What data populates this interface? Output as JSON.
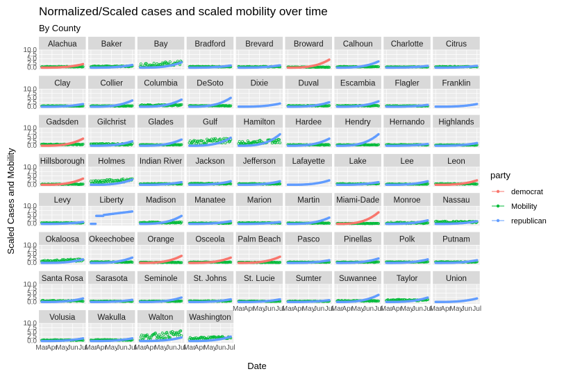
{
  "chart_data": {
    "type": "scatter",
    "title": "Normalized/Scaled cases and scaled mobility over time",
    "subtitle": "By County",
    "xlabel": "Date",
    "ylabel": "Scaled Cases and Mobility",
    "facet_by": "County",
    "x_ticks": [
      "Mar",
      "Apr",
      "May",
      "Jun",
      "Jul"
    ],
    "x_range": [
      "Mar",
      "Jul"
    ],
    "y_ticks": [
      0.0,
      2.5,
      5.0,
      7.5,
      10.0
    ],
    "y_tick_labels": [
      "0.0",
      "2.5",
      "5.0",
      "7.5",
      "10.0"
    ],
    "ylim": [
      -1,
      10
    ],
    "grid": true,
    "legend": {
      "title": "party",
      "position": "right",
      "entries": [
        {
          "name": "democrat",
          "color": "#F8766D"
        },
        {
          "name": "Mobility",
          "color": "#00BA38"
        },
        {
          "name": "republican",
          "color": "#619CFF"
        }
      ]
    },
    "panels": [
      {
        "county": "Alachua",
        "party": "democrat",
        "case_end": 2.0,
        "mob_base": 0.5,
        "mob_noise": 0.4
      },
      {
        "county": "Baker",
        "party": "republican",
        "case_end": 1.5,
        "mob_base": 0.7,
        "mob_noise": 0.5
      },
      {
        "county": "Bay",
        "party": "republican",
        "case_end": 3.0,
        "mob_base": 1.2,
        "mob_noise": 2.5
      },
      {
        "county": "Bradford",
        "party": "republican",
        "case_end": 1.2,
        "mob_base": 0.5,
        "mob_noise": 0.4
      },
      {
        "county": "Brevard",
        "party": "republican",
        "case_end": 1.3,
        "mob_base": 0.5,
        "mob_noise": 0.4
      },
      {
        "county": "Broward",
        "party": "democrat",
        "case_end": 4.5,
        "mob_base": 0.3,
        "mob_noise": 0.3
      },
      {
        "county": "Calhoun",
        "party": "republican",
        "case_end": 3.5,
        "mob_base": 0.5,
        "mob_noise": 0.3
      },
      {
        "county": "Charlotte",
        "party": "republican",
        "case_end": 1.0,
        "mob_base": 0.4,
        "mob_noise": 0.3
      },
      {
        "county": "Citrus",
        "party": "republican",
        "case_end": 1.0,
        "mob_base": 0.5,
        "mob_noise": 0.4
      },
      {
        "county": "Clay",
        "party": "republican",
        "case_end": 1.5,
        "mob_base": 0.4,
        "mob_noise": 0.3
      },
      {
        "county": "Collier",
        "party": "republican",
        "case_end": 3.5,
        "mob_base": 0.4,
        "mob_noise": 0.3
      },
      {
        "county": "Columbia",
        "party": "republican",
        "case_end": 4.0,
        "mob_base": 0.8,
        "mob_noise": 0.8
      },
      {
        "county": "DeSoto",
        "party": "republican",
        "case_end": 5.0,
        "mob_base": 0.5,
        "mob_noise": 0.3
      },
      {
        "county": "Dixie",
        "party": "republican",
        "case_end": 1.8,
        "mob_base": null,
        "mob_noise": 0
      },
      {
        "county": "Duval",
        "party": "republican",
        "case_end": 2.5,
        "mob_base": 0.5,
        "mob_noise": 0.4
      },
      {
        "county": "Escambia",
        "party": "republican",
        "case_end": 3.0,
        "mob_base": 0.5,
        "mob_noise": 0.4
      },
      {
        "county": "Flagler",
        "party": "republican",
        "case_end": 1.0,
        "mob_base": 0.4,
        "mob_noise": 0.3
      },
      {
        "county": "Franklin",
        "party": "republican",
        "case_end": 1.5,
        "mob_base": null,
        "mob_noise": 0
      },
      {
        "county": "Gadsden",
        "party": "democrat",
        "case_end": 4.0,
        "mob_base": 0.7,
        "mob_noise": 0.5
      },
      {
        "county": "Gilchrist",
        "party": "republican",
        "case_end": 2.5,
        "mob_base": 0.8,
        "mob_noise": 1.0
      },
      {
        "county": "Glades",
        "party": "republican",
        "case_end": 3.5,
        "mob_base": 0.5,
        "mob_noise": 0.3
      },
      {
        "county": "Gulf",
        "party": "republican",
        "case_end": 4.5,
        "mob_base": 1.5,
        "mob_noise": 3.0
      },
      {
        "county": "Hamilton",
        "party": "republican",
        "case_end": 6.5,
        "mob_base": 1.5,
        "mob_noise": 2.0
      },
      {
        "county": "Hardee",
        "party": "republican",
        "case_end": 4.0,
        "mob_base": 0.5,
        "mob_noise": 0.4
      },
      {
        "county": "Hendry",
        "party": "republican",
        "case_end": 6.5,
        "mob_base": 0.5,
        "mob_noise": 0.3
      },
      {
        "county": "Hernando",
        "party": "republican",
        "case_end": 1.0,
        "mob_base": 0.5,
        "mob_noise": 0.4
      },
      {
        "county": "Highlands",
        "party": "republican",
        "case_end": 1.5,
        "mob_base": 0.4,
        "mob_noise": 0.3
      },
      {
        "county": "Hillsborough",
        "party": "democrat",
        "case_end": 3.5,
        "mob_base": 0.3,
        "mob_noise": 0.3
      },
      {
        "county": "Holmes",
        "party": "republican",
        "case_end": 3.0,
        "mob_base": 1.5,
        "mob_noise": 2.0
      },
      {
        "county": "Indian River",
        "party": "republican",
        "case_end": 1.5,
        "mob_base": 0.5,
        "mob_noise": 0.4
      },
      {
        "county": "Jackson",
        "party": "republican",
        "case_end": 2.0,
        "mob_base": 0.6,
        "mob_noise": 0.5
      },
      {
        "county": "Jefferson",
        "party": "republican",
        "case_end": 2.0,
        "mob_base": 0.5,
        "mob_noise": 0.4
      },
      {
        "county": "Lafayette",
        "party": "republican",
        "case_end": 2.5,
        "mob_base": null,
        "mob_noise": 0
      },
      {
        "county": "Lake",
        "party": "republican",
        "case_end": 1.5,
        "mob_base": 0.5,
        "mob_noise": 0.4
      },
      {
        "county": "Lee",
        "party": "republican",
        "case_end": 2.0,
        "mob_base": 0.4,
        "mob_noise": 0.3
      },
      {
        "county": "Leon",
        "party": "democrat",
        "case_end": 2.5,
        "mob_base": 0.5,
        "mob_noise": 0.4
      },
      {
        "county": "Levy",
        "party": "republican",
        "case_end": 1.0,
        "mob_base": 0.5,
        "mob_noise": 0.4
      },
      {
        "county": "Liberty",
        "party": "republican",
        "case_end": 7.0,
        "case_shape": "step",
        "mob_base": null,
        "mob_noise": 0
      },
      {
        "county": "Madison",
        "party": "republican",
        "case_end": 4.5,
        "mob_base": 0.7,
        "mob_noise": 0.6
      },
      {
        "county": "Manatee",
        "party": "republican",
        "case_end": 1.5,
        "mob_base": 0.4,
        "mob_noise": 0.3
      },
      {
        "county": "Marion",
        "party": "republican",
        "case_end": 1.0,
        "mob_base": 0.5,
        "mob_noise": 0.4
      },
      {
        "county": "Martin",
        "party": "republican",
        "case_end": 3.5,
        "mob_base": 0.4,
        "mob_noise": 0.3
      },
      {
        "county": "Miami-Dade",
        "party": "democrat",
        "case_end": 6.5,
        "mob_base": 0.2,
        "mob_noise": 0.2
      },
      {
        "county": "Monroe",
        "party": "republican",
        "case_end": 2.0,
        "mob_base": 0.5,
        "mob_noise": 0.8
      },
      {
        "county": "Nassau",
        "party": "republican",
        "case_end": 1.5,
        "mob_base": 1.0,
        "mob_noise": 1.0
      },
      {
        "county": "Okaloosa",
        "party": "republican",
        "case_end": 2.0,
        "mob_base": 0.8,
        "mob_noise": 1.5
      },
      {
        "county": "Okeechobee",
        "party": "republican",
        "case_end": 3.0,
        "mob_base": 0.5,
        "mob_noise": 0.4
      },
      {
        "county": "Orange",
        "party": "democrat",
        "case_end": 4.0,
        "mob_base": 0.3,
        "mob_noise": 0.3
      },
      {
        "county": "Osceola",
        "party": "democrat",
        "case_end": 3.0,
        "mob_base": 0.4,
        "mob_noise": 0.3
      },
      {
        "county": "Palm Beach",
        "party": "democrat",
        "case_end": 3.5,
        "mob_base": 0.3,
        "mob_noise": 0.3
      },
      {
        "county": "Pasco",
        "party": "republican",
        "case_end": 1.5,
        "mob_base": 0.4,
        "mob_noise": 0.3
      },
      {
        "county": "Pinellas",
        "party": "republican",
        "case_end": 2.5,
        "mob_base": 0.4,
        "mob_noise": 0.3
      },
      {
        "county": "Polk",
        "party": "republican",
        "case_end": 2.0,
        "mob_base": 0.5,
        "mob_noise": 0.3
      },
      {
        "county": "Putnam",
        "party": "republican",
        "case_end": 1.5,
        "mob_base": 0.5,
        "mob_noise": 0.4
      },
      {
        "county": "Santa Rosa",
        "party": "republican",
        "case_end": 2.0,
        "mob_base": 0.6,
        "mob_noise": 0.6
      },
      {
        "county": "Sarasota",
        "party": "republican",
        "case_end": 1.2,
        "mob_base": 0.4,
        "mob_noise": 0.3
      },
      {
        "county": "Seminole",
        "party": "republican",
        "case_end": 2.5,
        "mob_base": 0.4,
        "mob_noise": 0.3
      },
      {
        "county": "St. Johns",
        "party": "republican",
        "case_end": 1.5,
        "mob_base": 0.5,
        "mob_noise": 0.4
      },
      {
        "county": "St. Lucie",
        "party": "republican",
        "case_end": 1.5,
        "mob_base": 0.4,
        "mob_noise": 0.3
      },
      {
        "county": "Sumter",
        "party": "republican",
        "case_end": 1.0,
        "mob_base": 0.4,
        "mob_noise": 0.3
      },
      {
        "county": "Suwannee",
        "party": "republican",
        "case_end": 4.0,
        "mob_base": 0.6,
        "mob_noise": 0.5
      },
      {
        "county": "Taylor",
        "party": "republican",
        "case_end": 2.5,
        "mob_base": 1.0,
        "mob_noise": 0.8
      },
      {
        "county": "Union",
        "party": "republican",
        "case_end": 2.0,
        "mob_base": null,
        "mob_noise": 0
      },
      {
        "county": "Volusia",
        "party": "republican",
        "case_end": 1.5,
        "mob_base": 0.5,
        "mob_noise": 0.4
      },
      {
        "county": "Wakulla",
        "party": "republican",
        "case_end": 1.5,
        "mob_base": 0.6,
        "mob_noise": 0.5
      },
      {
        "county": "Walton",
        "party": "republican",
        "case_end": 2.0,
        "mob_base": 2.0,
        "mob_noise": 3.5
      },
      {
        "county": "Washington",
        "party": "republican",
        "case_end": 2.5,
        "mob_base": 1.2,
        "mob_noise": 1.5
      }
    ]
  }
}
